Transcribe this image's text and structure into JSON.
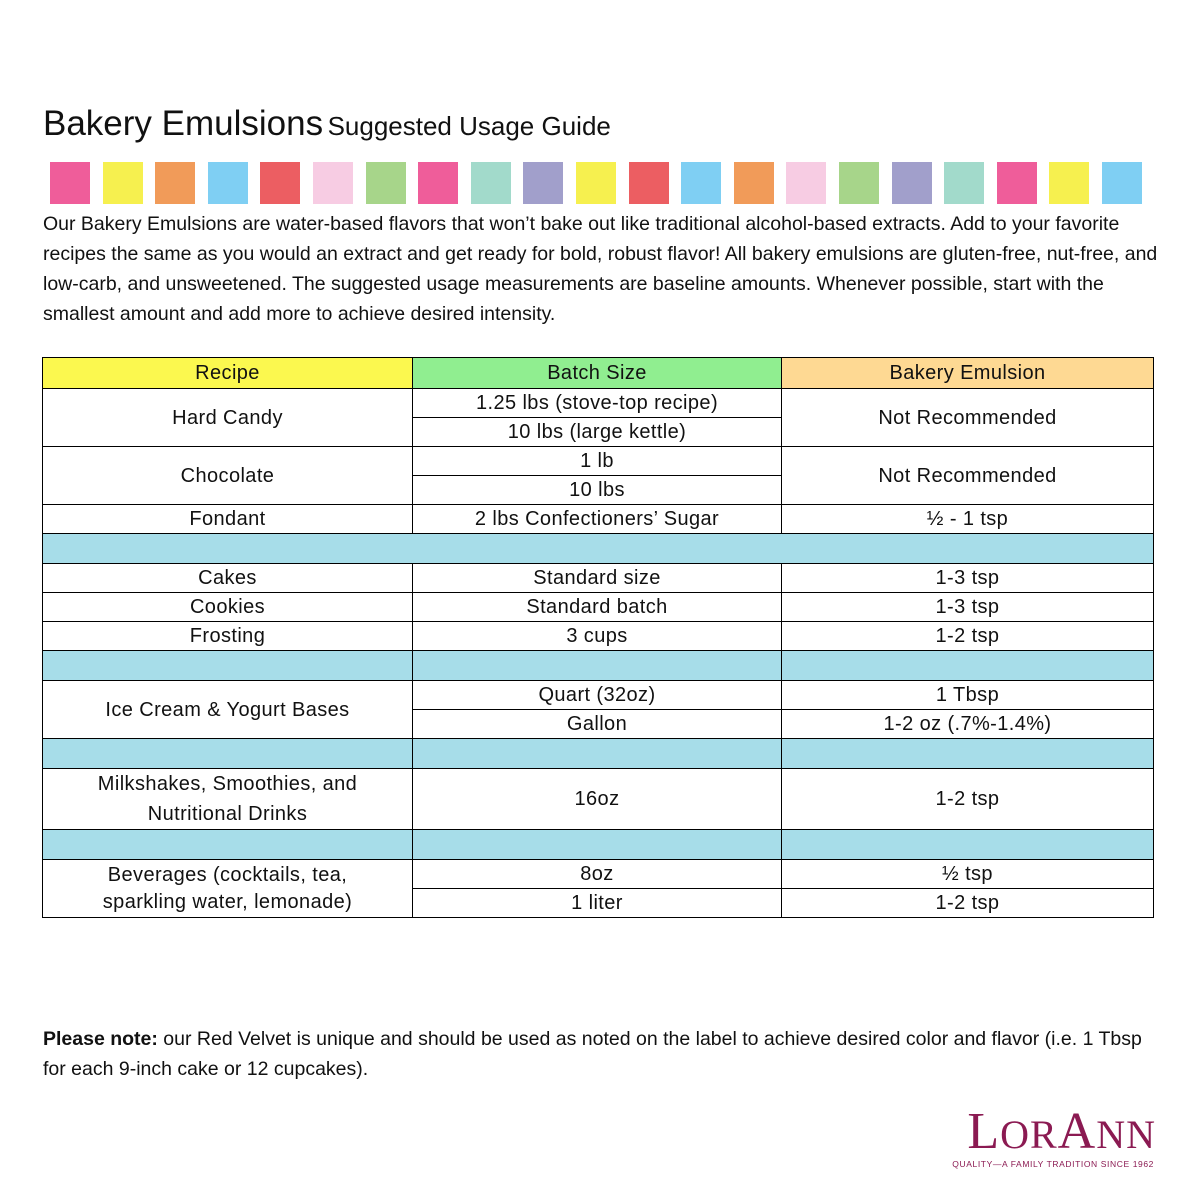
{
  "title": {
    "main": "Bakery Emulsions",
    "sub": "Suggested Usage Guide"
  },
  "swatch_colors": [
    "#ef5d9a",
    "#f6f04f",
    "#f19b59",
    "#7fcff3",
    "#ec5e62",
    "#f7cce3",
    "#a7d58a",
    "#ef5d9a",
    "#a2dacb",
    "#a19fcb",
    "#f6f04f",
    "#ec5e62",
    "#7fcff3",
    "#f19b59",
    "#f7cce3",
    "#a7d58a",
    "#a19fcb",
    "#a2dacb",
    "#ef5d9a",
    "#f6f04f",
    "#7fcff3"
  ],
  "intro": "Our Bakery Emulsions are water-based flavors that won’t bake out like traditional alcohol-based extracts. Add to your favorite recipes the same as you would an extract and get ready for bold, robust flavor! All bakery emulsions are gluten-free, nut-free, and low-carb, and unsweetened. The suggested usage measurements are baseline amounts. Whenever possible, start with the smallest amount and add more to achieve desired intensity.",
  "table": {
    "headers": [
      "Recipe",
      "Batch Size",
      "Bakery Emulsion"
    ],
    "hard_candy": {
      "recipe": "Hard Candy",
      "batch1": "1.25 lbs (stove-top recipe)",
      "batch2": "10 lbs (large kettle)",
      "amount": "Not Recommended"
    },
    "chocolate": {
      "recipe": "Chocolate",
      "batch1": "1 lb",
      "batch2": "10 lbs",
      "amount": "Not Recommended"
    },
    "fondant": {
      "recipe": "Fondant",
      "batch": "2 lbs Confectioners’ Sugar",
      "amount": "½ - 1 tsp"
    },
    "cakes": {
      "recipe": "Cakes",
      "batch": "Standard size",
      "amount": "1-3 tsp"
    },
    "cookies": {
      "recipe": "Cookies",
      "batch": "Standard batch",
      "amount": "1-3 tsp"
    },
    "frosting": {
      "recipe": "Frosting",
      "batch": "3 cups",
      "amount": "1-2 tsp"
    },
    "ice_cream": {
      "recipe": "Ice Cream & Yogurt Bases",
      "batch1": "Quart (32oz)",
      "amount1": "1 Tbsp",
      "batch2": "Gallon",
      "amount2": "1-2 oz (.7%-1.4%)"
    },
    "milkshakes": {
      "recipe_line1": "Milkshakes, Smoothies, and",
      "recipe_line2": "Nutritional Drinks",
      "batch": "16oz",
      "amount": "1-2 tsp"
    },
    "beverages": {
      "recipe_line1": "Beverages (cocktails, tea,",
      "recipe_line2": "sparkling water, lemonade)",
      "batch1": "8oz",
      "amount1": "½ tsp",
      "batch2": "1 liter",
      "amount2": "1-2 tsp"
    }
  },
  "note": {
    "label": "Please note:",
    "text": " our Red Velvet is unique and should be used as noted on the label to achieve desired color and flavor (i.e. 1 Tbsp for each 9-inch cake or 12 cupcakes)."
  },
  "logo": {
    "wordmark": "LorAnn",
    "tagline": "QUALITY—A FAMILY TRADITION SINCE 1962"
  }
}
